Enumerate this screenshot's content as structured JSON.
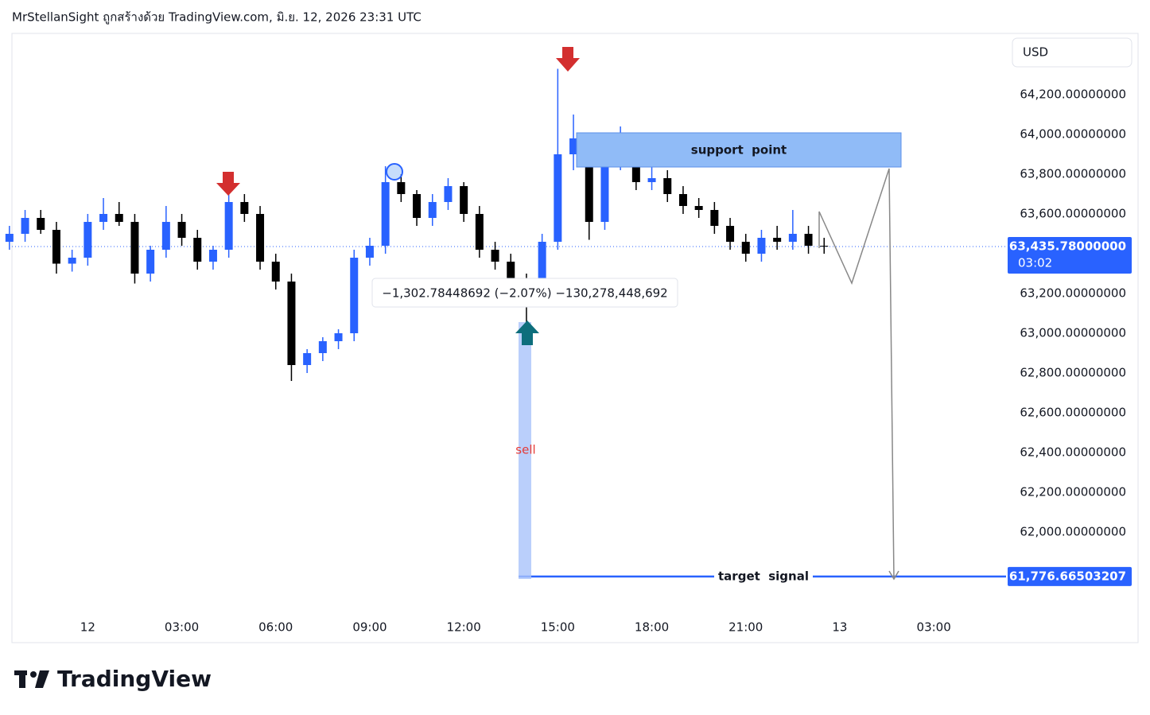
{
  "header": {
    "title": "MrStellanSight ถูกสร้างด้วย TradingView.com, มิ.ย. 12, 2026 23:31 UTC"
  },
  "chart_data": {
    "type": "candlestick",
    "currency": "USD",
    "categories": [
      null,
      null,
      null,
      null,
      null,
      "12",
      null,
      null,
      null,
      null,
      null,
      "03:00",
      null,
      null,
      null,
      null,
      null,
      "06:00",
      null,
      null,
      null,
      null,
      null,
      "09:00",
      null,
      null,
      null,
      null,
      null,
      "12:00",
      null,
      null,
      null,
      null,
      null,
      "15:00",
      null,
      null,
      null,
      null,
      null,
      "18:00",
      null,
      null,
      null,
      null,
      null,
      "21:00",
      null,
      null,
      null,
      null,
      null,
      "13",
      null,
      null,
      null,
      null,
      null,
      "03:00",
      null,
      null,
      null,
      null
    ],
    "open": [
      63460,
      63500,
      63580,
      63520,
      63350,
      63380,
      63560,
      63600,
      63560,
      63300,
      63420,
      63560,
      63480,
      63360,
      63420,
      63660,
      63600,
      63360,
      63260,
      62840,
      62900,
      62960,
      63000,
      63380,
      63440,
      63760,
      63700,
      63580,
      63660,
      63740,
      63600,
      63420,
      63360,
      63240,
      63180,
      63460,
      63900,
      63980,
      63560,
      63860,
      63940,
      63760,
      63780,
      63700,
      63640,
      63620,
      63540,
      63460,
      63400,
      63480,
      63460,
      63500,
      63440,
      null,
      null,
      null,
      null,
      null,
      null,
      null,
      null,
      null,
      null,
      null
    ],
    "high": [
      63540,
      63620,
      63620,
      63560,
      63420,
      63600,
      63680,
      63660,
      63600,
      63440,
      63640,
      63600,
      63520,
      63440,
      63720,
      63700,
      63640,
      63400,
      63300,
      62920,
      62980,
      63020,
      63420,
      63480,
      63840,
      63800,
      63720,
      63700,
      63780,
      63760,
      63640,
      63460,
      63400,
      63300,
      63500,
      64330,
      64100,
      64000,
      63900,
      64040,
      63960,
      63840,
      63820,
      63740,
      63680,
      63660,
      63580,
      63500,
      63520,
      63540,
      63620,
      63540,
      63480,
      null,
      null,
      null,
      null,
      null,
      null,
      null,
      null,
      null,
      null,
      null
    ],
    "high_note": null,
    "low": [
      63420,
      63460,
      63500,
      63300,
      63310,
      63340,
      63520,
      63540,
      63250,
      63260,
      63380,
      63440,
      63320,
      63320,
      63380,
      63560,
      63320,
      63220,
      62760,
      62800,
      62860,
      62920,
      62960,
      63340,
      63400,
      63660,
      63540,
      63540,
      63620,
      63560,
      63380,
      63320,
      63200,
      62990,
      63140,
      63420,
      63820,
      63470,
      63520,
      63820,
      63720,
      63720,
      63660,
      63600,
      63580,
      63500,
      63420,
      63360,
      63360,
      63420,
      63420,
      63400,
      63400,
      null,
      null,
      null,
      null,
      null,
      null,
      null,
      null,
      null,
      null,
      null
    ],
    "close": [
      63500,
      63580,
      63520,
      63350,
      63380,
      63560,
      63600,
      63560,
      63300,
      63420,
      63560,
      63480,
      63360,
      63420,
      63660,
      63600,
      63360,
      63260,
      62840,
      62900,
      62960,
      63000,
      63380,
      63440,
      63760,
      63700,
      63580,
      63660,
      63740,
      63600,
      63420,
      63360,
      63240,
      63180,
      63460,
      63900,
      63980,
      63560,
      63860,
      63940,
      63760,
      63780,
      63700,
      63640,
      63620,
      63540,
      63460,
      63400,
      63480,
      63460,
      63500,
      63440,
      63436,
      null,
      null,
      null,
      null,
      null,
      null,
      null,
      null,
      null,
      null,
      null
    ],
    "up_color": "#2962ff",
    "down_color": "#000000",
    "ylim": [
      61600,
      64500
    ],
    "yticks": [
      {
        "value": 62000,
        "label": "62,000.00000000"
      },
      {
        "value": 62200,
        "label": "62,200.00000000"
      },
      {
        "value": 62400,
        "label": "62,400.00000000"
      },
      {
        "value": 62600,
        "label": "62,600.00000000"
      },
      {
        "value": 62800,
        "label": "62,800.00000000"
      },
      {
        "value": 63000,
        "label": "63,000.00000000"
      },
      {
        "value": 63200,
        "label": "63,200.00000000"
      },
      {
        "value": 63600,
        "label": "63,600.00000000"
      },
      {
        "value": 63800,
        "label": "63,800.00000000"
      },
      {
        "value": 64000,
        "label": "64,000.00000000"
      },
      {
        "value": 64200,
        "label": "64,200.00000000"
      }
    ],
    "last_price": {
      "value": 63435.78,
      "label": "63,435.78000000",
      "countdown": "03:02"
    },
    "target": {
      "value": 61776.66503207,
      "label": "61,776.66503207",
      "text": "target  signal"
    },
    "annotations": {
      "support": "support  point",
      "sell": "sell",
      "measure": "−1,302.78448692 (−2.07%) −130,278,448,692"
    }
  },
  "footer": {
    "logo": "TradingView"
  }
}
